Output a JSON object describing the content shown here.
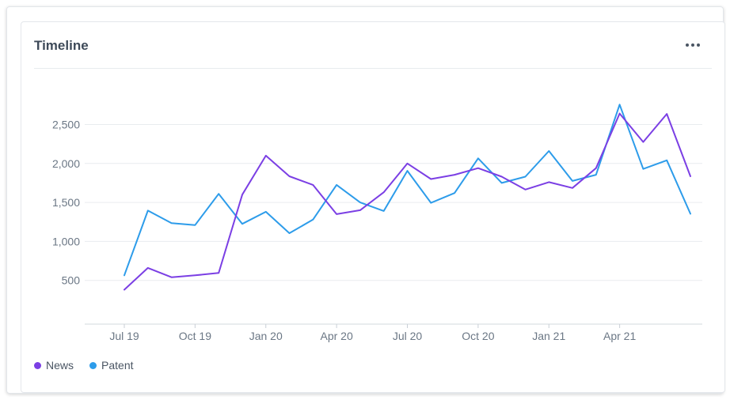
{
  "card": {
    "title": "Timeline",
    "menu_icon": "more-horizontal-icon"
  },
  "chart_data": {
    "type": "line",
    "title": "Timeline",
    "xlabel": "",
    "ylabel": "",
    "x": [
      "2019-07",
      "2019-08",
      "2019-09",
      "2019-10",
      "2019-11",
      "2019-12",
      "2020-01",
      "2020-02",
      "2020-03",
      "2020-04",
      "2020-05",
      "2020-06",
      "2020-07",
      "2020-08",
      "2020-09",
      "2020-10",
      "2020-11",
      "2020-12",
      "2021-01",
      "2021-02",
      "2021-03",
      "2021-04",
      "2021-05",
      "2021-06",
      "2021-07"
    ],
    "x_tick_labels": [
      "Jul 19",
      "Oct 19",
      "Jan 20",
      "Apr 20",
      "Jul 20",
      "Oct 20",
      "Jan 21",
      "Apr 21"
    ],
    "x_tick_positions": [
      "2019-07",
      "2019-10",
      "2020-01",
      "2020-04",
      "2020-07",
      "2020-10",
      "2021-01",
      "2021-04"
    ],
    "y_ticks": [
      500,
      1000,
      1500,
      2000,
      2500
    ],
    "y_tick_labels": [
      "500",
      "1,000",
      "1,500",
      "2,000",
      "2,500"
    ],
    "ylim": [
      0,
      2900
    ],
    "grid": true,
    "legend": "bottom-left",
    "series": [
      {
        "name": "News",
        "color": "#7b3fe4",
        "values": [
          380,
          660,
          540,
          565,
          595,
          1600,
          2100,
          1835,
          1725,
          1350,
          1400,
          1630,
          2000,
          1800,
          1855,
          1940,
          1830,
          1665,
          1760,
          1685,
          1940,
          2640,
          2275,
          2635,
          1835
        ]
      },
      {
        "name": "Patent",
        "color": "#2d9cea",
        "values": [
          565,
          1395,
          1235,
          1210,
          1610,
          1225,
          1380,
          1105,
          1280,
          1725,
          1500,
          1390,
          1905,
          1495,
          1620,
          2065,
          1750,
          1830,
          2160,
          1775,
          1855,
          2755,
          1930,
          2040,
          1355
        ]
      }
    ]
  }
}
